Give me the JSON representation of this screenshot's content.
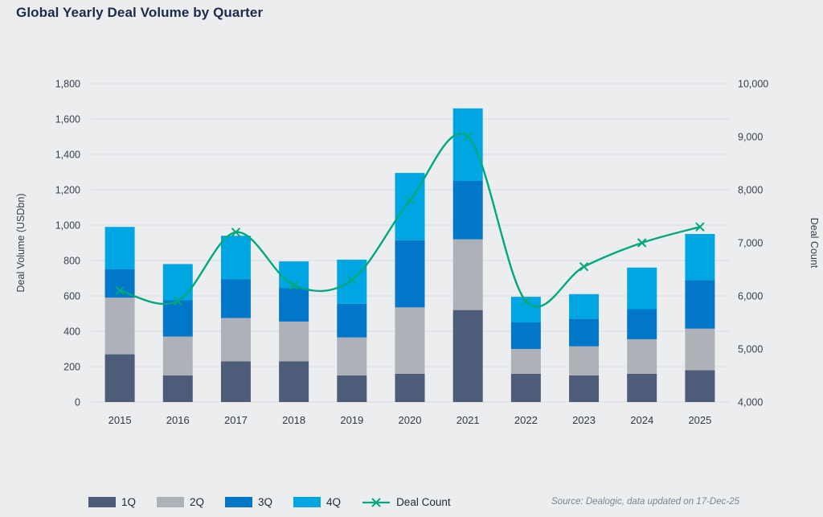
{
  "page": {
    "title": "Global Yearly Deal Volume by Quarter",
    "source_note": "Source: Dealogic, data updated on 17-Dec-25"
  },
  "colors": {
    "background": "#ECEDEF",
    "title_text": "#1B2B4D",
    "q1": "#4D5C78",
    "q2": "#AEB1B7",
    "q3": "#0077C8",
    "q4": "#00A6E2",
    "deal_count_line": "#00A880",
    "gridline": "#DADCDF",
    "tick_text": "#39404E",
    "year_text": "#2E3847",
    "source_text": "#7D838F"
  },
  "chart_data": {
    "type": "bar",
    "subtype": "stacked-bars-with-line-overlay",
    "title": "Global Yearly Deal Volume by Quarter",
    "categories": [
      "2015",
      "2016",
      "2017",
      "2018",
      "2019",
      "2020",
      "2021",
      "2022",
      "2023",
      "2024",
      "2025"
    ],
    "series": [
      {
        "name": "1Q",
        "type": "bar",
        "axis": "left",
        "values": [
          270,
          150,
          230,
          230,
          150,
          160,
          520,
          160,
          150,
          160,
          180
        ]
      },
      {
        "name": "2Q",
        "type": "bar",
        "axis": "left",
        "values": [
          320,
          220,
          245,
          225,
          215,
          375,
          400,
          140,
          165,
          195,
          235
        ]
      },
      {
        "name": "3Q",
        "type": "bar",
        "axis": "left",
        "values": [
          160,
          205,
          220,
          190,
          190,
          380,
          330,
          150,
          155,
          170,
          275
        ]
      },
      {
        "name": "4Q",
        "type": "bar",
        "axis": "left",
        "values": [
          240,
          205,
          245,
          150,
          250,
          380,
          410,
          145,
          140,
          235,
          260
        ]
      },
      {
        "name": "Deal Count",
        "type": "line",
        "axis": "right",
        "values": [
          6100,
          5900,
          7200,
          6200,
          6300,
          7800,
          9000,
          5900,
          6550,
          7000,
          7300
        ]
      }
    ],
    "bar_totals": [
      990,
      780,
      940,
      795,
      805,
      1295,
      1660,
      595,
      610,
      760,
      950
    ],
    "left_axis": {
      "label": "Deal Volume (USDbn)",
      "min": 0,
      "max": 1800,
      "step": 200
    },
    "right_axis": {
      "label": "Deal Count",
      "min": 4000,
      "max": 10000,
      "step": 1000
    },
    "legend": [
      "1Q",
      "2Q",
      "3Q",
      "4Q",
      "Deal Count"
    ],
    "grid": true,
    "legend_position": "bottom-left"
  }
}
